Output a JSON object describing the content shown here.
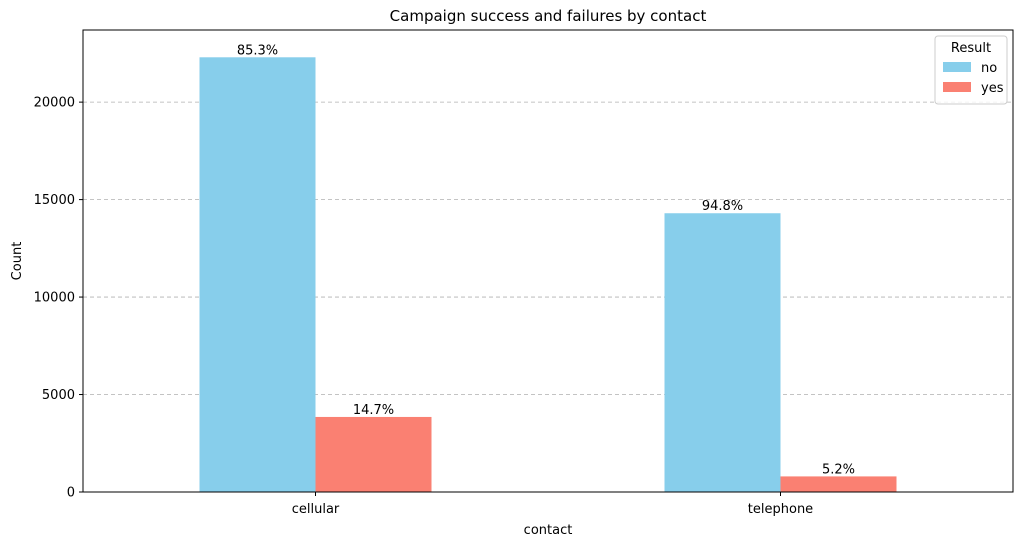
{
  "chart_data": {
    "type": "bar",
    "title": "Campaign success and failures by contact",
    "xlabel": "contact",
    "ylabel": "Count",
    "categories": [
      "cellular",
      "telephone"
    ],
    "series": [
      {
        "name": "no",
        "color": "#87CEEB",
        "values": [
          22300,
          14300
        ],
        "labels": [
          "85.3%",
          "94.8%"
        ]
      },
      {
        "name": "yes",
        "color": "#FA8072",
        "values": [
          3850,
          800
        ],
        "labels": [
          "14.7%",
          "5.2%"
        ]
      }
    ],
    "ylim": [
      0,
      23700
    ],
    "yticks": [
      0,
      5000,
      10000,
      15000,
      20000
    ],
    "grid": "y-dashed",
    "legend": {
      "title": "Result",
      "placement": "top-right"
    }
  }
}
